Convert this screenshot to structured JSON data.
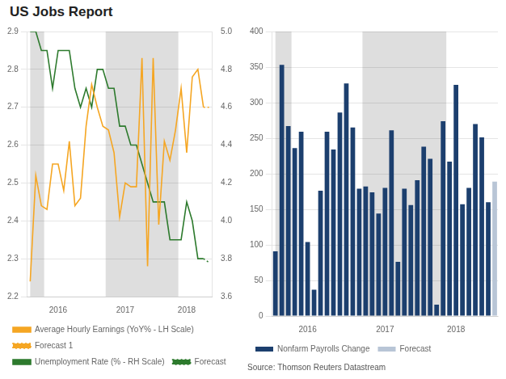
{
  "chart_data": [
    {
      "type": "line",
      "title": "US Jobs Report",
      "categories": [
        null,
        null,
        null,
        null,
        null,
        "2016",
        null,
        null,
        null,
        null,
        null,
        null,
        null,
        null,
        null,
        null,
        null,
        "2017",
        null,
        null,
        null,
        null,
        null,
        null,
        null,
        null,
        null,
        null,
        "2018",
        null,
        null,
        null,
        null
      ],
      "series": [
        {
          "name": "Average Hourly Earnings (YoY% - LH Scale)",
          "color": "#f5a623",
          "line_style": "solid",
          "values": [
            2.24,
            2.52,
            2.44,
            2.43,
            2.55,
            2.55,
            2.48,
            2.61,
            2.44,
            2.46,
            2.65,
            2.76,
            2.7,
            2.65,
            2.64,
            2.58,
            2.41,
            2.5,
            2.49,
            2.49,
            2.83,
            2.28,
            2.83,
            2.39,
            2.61,
            2.56,
            2.64,
            2.75,
            2.58,
            2.78,
            2.8,
            2.7,
            null
          ]
        },
        {
          "name": "Forecast 1",
          "color": "#f5a623",
          "line_style": "dotted",
          "values": [
            null,
            null,
            null,
            null,
            null,
            null,
            null,
            null,
            null,
            null,
            null,
            null,
            null,
            null,
            null,
            null,
            null,
            null,
            null,
            null,
            null,
            null,
            null,
            null,
            null,
            null,
            null,
            null,
            null,
            null,
            null,
            2.7,
            2.7
          ]
        },
        {
          "name": "Unemployment Rate (% - RH Scale)",
          "color": "#2d7a2d",
          "line_style": "solid",
          "axis": "y2",
          "values": [
            5.0,
            5.0,
            4.9,
            4.9,
            4.7,
            4.9,
            4.9,
            4.9,
            4.7,
            4.6,
            4.7,
            4.6,
            4.8,
            4.8,
            4.7,
            4.7,
            4.5,
            4.5,
            4.4,
            4.4,
            4.3,
            4.2,
            4.1,
            4.1,
            4.1,
            3.9,
            3.9,
            3.9,
            4.1,
            4.0,
            3.8,
            3.8,
            null
          ]
        },
        {
          "name": "Forecast",
          "color": "#2d7a2d",
          "line_style": "dotted",
          "axis": "y2",
          "values": [
            null,
            null,
            null,
            null,
            null,
            null,
            null,
            null,
            null,
            null,
            null,
            null,
            null,
            null,
            null,
            null,
            null,
            null,
            null,
            null,
            null,
            null,
            null,
            null,
            null,
            null,
            null,
            null,
            null,
            null,
            null,
            3.8,
            3.78
          ]
        }
      ],
      "shade_regions": [
        [
          0,
          2.5
        ],
        [
          13.5,
          26.5
        ]
      ],
      "ylim": [
        2.2,
        2.9
      ],
      "yticks": [
        2.2,
        2.3,
        2.4,
        2.5,
        2.6,
        2.7,
        2.8,
        2.9
      ],
      "y2lim": [
        3.6,
        5.0
      ],
      "y2ticks": [
        3.6,
        3.8,
        {
          "value": 4.0,
          "label": "4.0"
        },
        4.2,
        4.4,
        4.6,
        4.8,
        {
          "value": 5.0,
          "label": "5.0"
        }
      ],
      "grid": true,
      "legend": "lower left"
    },
    {
      "type": "bar",
      "categories": [
        null,
        null,
        null,
        null,
        null,
        "2016",
        null,
        null,
        null,
        null,
        null,
        null,
        null,
        null,
        null,
        null,
        null,
        "2017",
        null,
        null,
        null,
        null,
        null,
        null,
        null,
        null,
        null,
        null,
        "2018",
        null,
        null,
        null,
        null,
        null,
        null
      ],
      "series": [
        {
          "name": "Nonfarm Payrolls Change",
          "color": "#1c3f6e",
          "values": [
            91,
            353,
            267,
            236,
            259,
            104,
            37,
            176,
            259,
            234,
            286,
            327,
            265,
            179,
            182,
            174,
            144,
            180,
            261,
            76,
            179,
            156,
            191,
            238,
            221,
            16,
            274,
            217,
            325,
            157,
            180,
            270,
            251,
            160,
            null
          ]
        },
        {
          "name": "Forecast",
          "color": "#b8c5d6",
          "values": [
            null,
            null,
            null,
            null,
            null,
            null,
            null,
            null,
            null,
            null,
            null,
            null,
            null,
            null,
            null,
            null,
            null,
            null,
            null,
            null,
            null,
            null,
            null,
            null,
            null,
            null,
            null,
            null,
            null,
            null,
            null,
            null,
            null,
            null,
            189
          ]
        }
      ],
      "shade_regions": [
        [
          0,
          2.5
        ],
        [
          13.5,
          26.5
        ]
      ],
      "ylim": [
        0,
        400
      ],
      "yticks": [
        0,
        50,
        100,
        150,
        200,
        250,
        300,
        350,
        400
      ],
      "grid": true,
      "legend": "lower left",
      "annotation": "Source: Thomson Reuters Datastream"
    }
  ]
}
